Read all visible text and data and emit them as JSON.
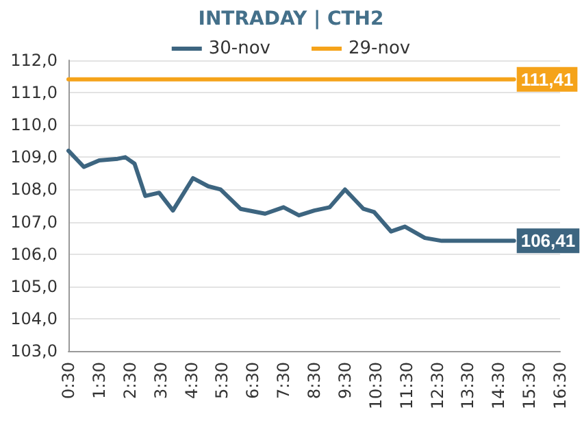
{
  "chart_data": {
    "type": "line",
    "title": "INTRADAY | CTH2",
    "xlim": [
      0.5,
      16.5
    ],
    "xticks": [
      {
        "value": 0.5,
        "label": "0:30"
      },
      {
        "value": 1.5,
        "label": "1:30"
      },
      {
        "value": 2.5,
        "label": "2:30"
      },
      {
        "value": 3.5,
        "label": "3:30"
      },
      {
        "value": 4.5,
        "label": "4:30"
      },
      {
        "value": 5.5,
        "label": "5:30"
      },
      {
        "value": 6.5,
        "label": "6:30"
      },
      {
        "value": 7.5,
        "label": "7:30"
      },
      {
        "value": 8.5,
        "label": "8:30"
      },
      {
        "value": 9.5,
        "label": "9:30"
      },
      {
        "value": 10.5,
        "label": "10:30"
      },
      {
        "value": 11.5,
        "label": "11:30"
      },
      {
        "value": 12.5,
        "label": "12:30"
      },
      {
        "value": 13.5,
        "label": "13:30"
      },
      {
        "value": 14.5,
        "label": "14:30"
      },
      {
        "value": 15.5,
        "label": "15:30"
      },
      {
        "value": 16.5,
        "label": "16:30"
      }
    ],
    "ylim": [
      103,
      112
    ],
    "yticks": [
      {
        "value": 103,
        "label": "103,0"
      },
      {
        "value": 104,
        "label": "104,0"
      },
      {
        "value": 105,
        "label": "105,0"
      },
      {
        "value": 106,
        "label": "106,0"
      },
      {
        "value": 107,
        "label": "107,0"
      },
      {
        "value": 108,
        "label": "108,0"
      },
      {
        "value": 109,
        "label": "109,0"
      },
      {
        "value": 110,
        "label": "110,0"
      },
      {
        "value": 111,
        "label": "111,0"
      },
      {
        "value": 112,
        "label": "112,0"
      }
    ],
    "series": [
      {
        "name": "30-nov",
        "color": "#3d6580",
        "x": [
          0.5,
          1.0,
          1.5,
          2.1,
          2.35,
          2.65,
          3.0,
          3.45,
          3.9,
          4.55,
          5.05,
          5.45,
          6.1,
          6.9,
          7.5,
          8.0,
          8.5,
          9.0,
          9.5,
          10.1,
          10.45,
          11.0,
          11.45,
          12.1,
          12.65,
          15.0
        ],
        "values": [
          109.2,
          108.7,
          108.9,
          108.95,
          109.0,
          108.8,
          107.8,
          107.9,
          107.35,
          108.35,
          108.1,
          108.0,
          107.4,
          107.25,
          107.45,
          107.2,
          107.35,
          107.45,
          108.0,
          107.4,
          107.3,
          106.7,
          106.85,
          106.5,
          106.41,
          106.41
        ],
        "value_labels": [
          null,
          null,
          null,
          null,
          null,
          null,
          null,
          null,
          null,
          null,
          null,
          null,
          null,
          null,
          null,
          null,
          null,
          null,
          null,
          null,
          null,
          null,
          null,
          null,
          null,
          "106,41"
        ]
      },
      {
        "name": "29-nov",
        "color": "#f5a31a",
        "x": [
          0.5,
          15.0
        ],
        "values": [
          111.41,
          111.41
        ],
        "value_labels": [
          null,
          "111,41"
        ]
      }
    ],
    "grid": "y",
    "legend": "top",
    "marker": "none",
    "line_style": "solid"
  }
}
